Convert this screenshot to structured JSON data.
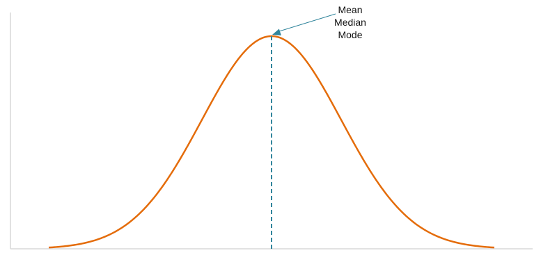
{
  "chart_data": {
    "type": "line",
    "title": "",
    "xlabel": "",
    "ylabel": "",
    "curve": "normal-distribution",
    "mean": 0,
    "std": 1,
    "xlim": [
      -3.2,
      3.2
    ],
    "ylim": [
      0,
      1
    ],
    "grid": false,
    "legend": "none",
    "series": [
      {
        "kind": "normal-pdf",
        "color": "#e46c0a"
      }
    ],
    "center_line": {
      "x": 0,
      "style": "dashed",
      "color": "#31859c"
    },
    "annotation": {
      "lines": [
        "Mean",
        "Median",
        "Mode"
      ],
      "points_to": "peak",
      "arrow_color": "#31859c"
    }
  }
}
